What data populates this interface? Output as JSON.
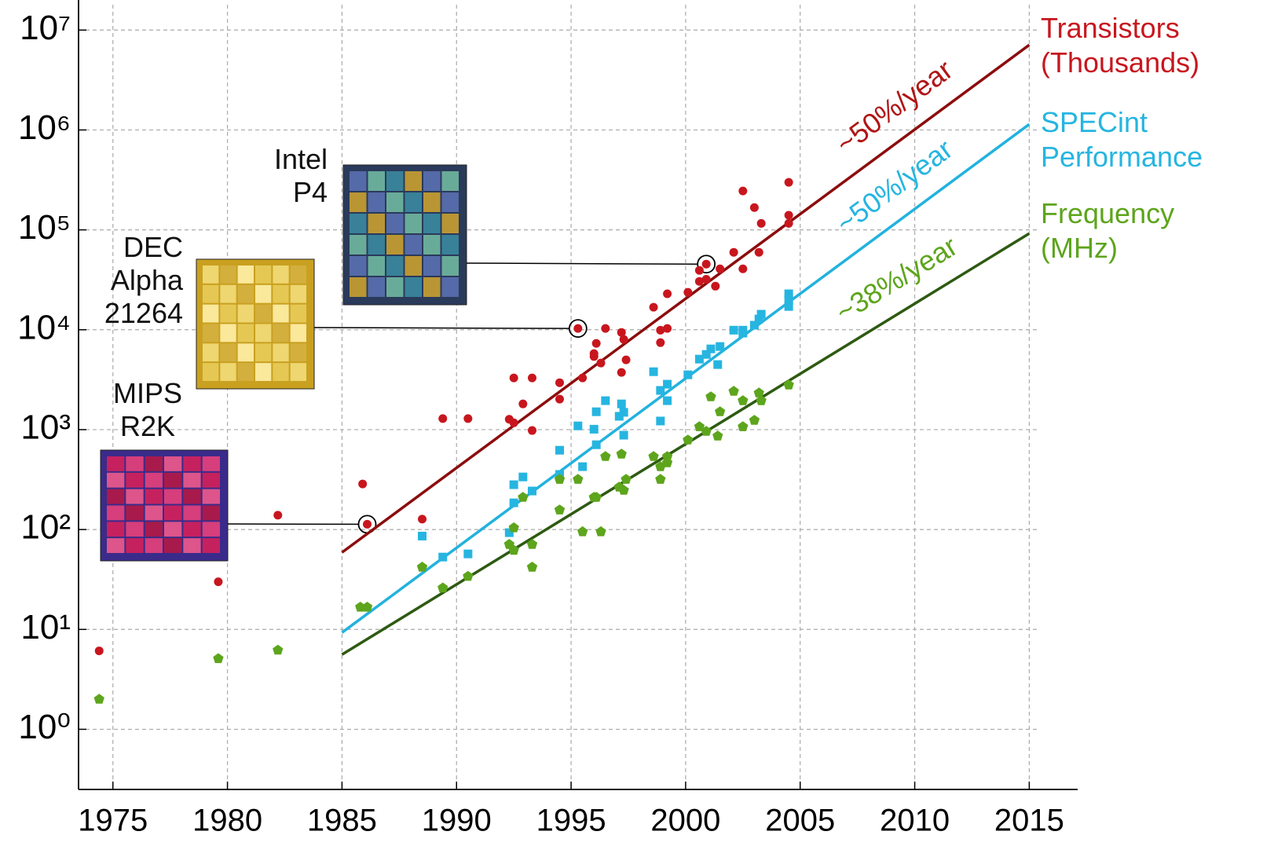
{
  "chart_data": {
    "type": "scatter",
    "log_y": true,
    "grid": true,
    "legend": "right",
    "xlim": [
      1973.5,
      2015.5
    ],
    "ylim": [
      0.25,
      20000000
    ],
    "xticks": [
      1975,
      1980,
      1985,
      1990,
      1995,
      2000,
      2005,
      2010,
      2015
    ],
    "yticks": [
      {
        "value": 1,
        "label": "10⁰"
      },
      {
        "value": 10,
        "label": "10¹"
      },
      {
        "value": 100,
        "label": "10²"
      },
      {
        "value": 1000,
        "label": "10³"
      },
      {
        "value": 10000,
        "label": "10⁴"
      },
      {
        "value": 100000,
        "label": "10⁵"
      },
      {
        "value": 1000000,
        "label": "10⁶"
      },
      {
        "value": 10000000,
        "label": "10⁷"
      }
    ],
    "series": [
      {
        "name": "Transistors (Thousands)",
        "color": "#c8161e",
        "marker": "circle",
        "x": [
          1974.4,
          1979.6,
          1982.2,
          1985.9,
          1986.1,
          1988.5,
          1989.4,
          1990.5,
          1992.3,
          1992.5,
          1992.5,
          1992.9,
          1993.3,
          1993.3,
          1994.5,
          1994.5,
          1995.3,
          1995.5,
          1996.0,
          1996.0,
          1996.1,
          1996.3,
          1996.5,
          1997.2,
          1997.3,
          1997.2,
          1997.4,
          1998.6,
          1999.2,
          1998.9,
          1999.2,
          1998.9,
          2000.1,
          2000.6,
          2000.9,
          2000.6,
          2000.9,
          2001.5,
          2001.3,
          2002.1,
          2002.5,
          2002.5,
          2003.0,
          2003.2,
          2003.3,
          2004.5,
          2004.5,
          2004.5
        ],
        "values": [
          6.1,
          30,
          139,
          286,
          113,
          127,
          1290,
          1290,
          1270,
          3290,
          1170,
          1810,
          3290,
          980,
          2950,
          2020,
          10300,
          3290,
          5770,
          5400,
          7300,
          4640,
          10300,
          9400,
          8000,
          3740,
          4990,
          16800,
          22900,
          9900,
          10300,
          7430,
          23700,
          30500,
          32000,
          39300,
          45400,
          40700,
          27300,
          59600,
          40700,
          245000,
          167000,
          59600,
          116000,
          299000,
          140000,
          116000
        ]
      },
      {
        "name": "SPECint Performance",
        "color": "#26b5e0",
        "marker": "square",
        "x": [
          1988.5,
          1989.4,
          1990.5,
          1992.3,
          1992.5,
          1992.5,
          1992.9,
          1993.3,
          1994.5,
          1994.5,
          1995.3,
          1995.5,
          1996.0,
          1996.1,
          1996.1,
          1996.5,
          1997.1,
          1997.2,
          1997.3,
          1997.3,
          1998.6,
          1998.9,
          1998.9,
          1999.2,
          1999.2,
          2000.1,
          2000.6,
          2000.9,
          2001.1,
          2001.5,
          2001.4,
          2002.1,
          2002.5,
          2002.5,
          2003.0,
          2003.2,
          2003.3,
          2004.5,
          2004.5,
          2004.5
        ],
        "values": [
          86,
          53,
          57,
          93,
          281,
          185,
          336,
          243,
          622,
          356,
          1090,
          426,
          1010,
          706,
          1510,
          1950,
          1360,
          1810,
          1490,
          880,
          3800,
          2470,
          1220,
          2850,
          1950,
          3540,
          5080,
          5660,
          6430,
          6790,
          4480,
          9900,
          9250,
          9900,
          11100,
          12800,
          14300,
          22900,
          20100,
          17100
        ]
      },
      {
        "name": "Frequency (MHz)",
        "color": "#5da51c",
        "marker": "pentagon",
        "x": [
          1974.4,
          1979.6,
          1982.2,
          1985.8,
          1986.1,
          1988.5,
          1989.4,
          1990.5,
          1992.3,
          1992.5,
          1992.5,
          1992.9,
          1993.3,
          1993.3,
          1994.5,
          1994.5,
          1995.3,
          1995.5,
          1996.0,
          1996.1,
          1996.3,
          1996.5,
          1997.1,
          1997.2,
          1997.3,
          1997.4,
          1998.6,
          1998.9,
          1998.9,
          1999.2,
          1999.2,
          2000.1,
          2000.6,
          2000.9,
          2001.1,
          2001.4,
          2001.5,
          2002.1,
          2002.5,
          2002.5,
          2003.0,
          2003.2,
          2003.3,
          2004.5
        ],
        "values": [
          2.0,
          5.1,
          6.2,
          16.7,
          16.7,
          42,
          26,
          34,
          71,
          104,
          62,
          210,
          71,
          42,
          318,
          157,
          318,
          95,
          210,
          210,
          95,
          538,
          266,
          569,
          247,
          318,
          538,
          318,
          426,
          466,
          538,
          787,
          1070,
          961,
          2130,
          863,
          1510,
          2420,
          1070,
          1950,
          1240,
          2330,
          1950,
          2800
        ]
      }
    ],
    "trend_lines": [
      {
        "label": "~50%/year",
        "color": "#8c0d0d",
        "label_color": "#b01515",
        "x": [
          1985,
          2015
        ],
        "values": [
          59,
          7100000
        ]
      },
      {
        "label": "~50%/year",
        "color": "#22b2de",
        "label_color": "#26b5e0",
        "x": [
          1985,
          2015
        ],
        "values": [
          9.3,
          1140000
        ]
      },
      {
        "label": "~38%/year",
        "color": "#2e5a12",
        "label_color": "#5da51c",
        "x": [
          1985,
          2015
        ],
        "values": [
          5.6,
          92000
        ]
      }
    ],
    "annotations": [
      {
        "label": "MIPS R2K",
        "x": 1986.1,
        "y": 113
      },
      {
        "label": "DEC Alpha 21264",
        "x": 1995.3,
        "y": 10300
      },
      {
        "label": "Intel P4",
        "x": 2000.9,
        "y": 45400
      }
    ]
  }
}
